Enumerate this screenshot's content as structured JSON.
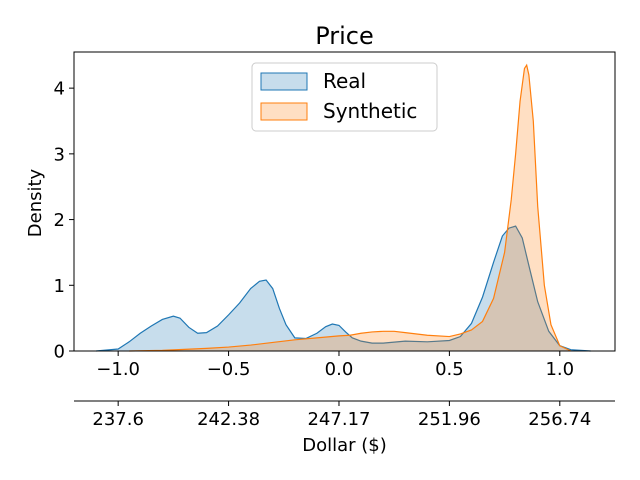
{
  "chart_data": {
    "type": "area",
    "title": "Price",
    "ylabel": "Density",
    "xlim": [
      -1.2,
      1.25
    ],
    "ylim": [
      0,
      4.55
    ],
    "x_ticks": [
      -1.0,
      -0.5,
      0.0,
      0.5,
      1.0
    ],
    "x_tick_labels": [
      "−1.0",
      "−0.5",
      "0.0",
      "0.5",
      "1.0"
    ],
    "y_ticks": [
      0,
      1,
      2,
      3,
      4
    ],
    "y_tick_labels": [
      "0",
      "1",
      "2",
      "3",
      "4"
    ],
    "secondary_axis": {
      "xlabel": "Dollar ($)",
      "tick_labels": [
        "237.6",
        "242.38",
        "247.17",
        "251.96",
        "256.74"
      ]
    },
    "legend": {
      "position": "top-center"
    },
    "series": [
      {
        "name": "Real",
        "color": "#1f77b4",
        "fill": "#1f77b4",
        "fill_opacity": 0.25,
        "x": [
          -1.1,
          -1.0,
          -0.95,
          -0.9,
          -0.85,
          -0.8,
          -0.75,
          -0.72,
          -0.68,
          -0.64,
          -0.6,
          -0.55,
          -0.5,
          -0.45,
          -0.4,
          -0.36,
          -0.33,
          -0.3,
          -0.27,
          -0.24,
          -0.2,
          -0.15,
          -0.1,
          -0.06,
          -0.03,
          0.0,
          0.03,
          0.06,
          0.1,
          0.15,
          0.2,
          0.3,
          0.4,
          0.5,
          0.55,
          0.6,
          0.65,
          0.7,
          0.74,
          0.77,
          0.8,
          0.83,
          0.86,
          0.9,
          0.95,
          1.0,
          1.05,
          1.14
        ],
        "y": [
          0.0,
          0.03,
          0.14,
          0.27,
          0.38,
          0.48,
          0.53,
          0.5,
          0.36,
          0.27,
          0.28,
          0.38,
          0.55,
          0.73,
          0.95,
          1.06,
          1.08,
          0.95,
          0.65,
          0.4,
          0.2,
          0.19,
          0.27,
          0.37,
          0.41,
          0.39,
          0.29,
          0.2,
          0.15,
          0.12,
          0.12,
          0.15,
          0.14,
          0.16,
          0.22,
          0.42,
          0.82,
          1.35,
          1.75,
          1.87,
          1.9,
          1.72,
          1.3,
          0.75,
          0.3,
          0.08,
          0.02,
          0.0
        ]
      },
      {
        "name": "Synthetic",
        "color": "#ff7f0e",
        "fill": "#ff7f0e",
        "fill_opacity": 0.25,
        "x": [
          -0.95,
          -0.8,
          -0.6,
          -0.5,
          -0.4,
          -0.3,
          -0.2,
          -0.1,
          0.0,
          0.05,
          0.1,
          0.15,
          0.2,
          0.25,
          0.3,
          0.4,
          0.5,
          0.55,
          0.6,
          0.65,
          0.7,
          0.75,
          0.78,
          0.8,
          0.82,
          0.84,
          0.85,
          0.86,
          0.88,
          0.9,
          0.93,
          0.96,
          1.0,
          1.05
        ],
        "y": [
          0.0,
          0.01,
          0.04,
          0.06,
          0.09,
          0.13,
          0.17,
          0.2,
          0.23,
          0.24,
          0.27,
          0.29,
          0.3,
          0.3,
          0.28,
          0.24,
          0.22,
          0.26,
          0.32,
          0.45,
          0.8,
          1.5,
          2.3,
          3.0,
          3.8,
          4.3,
          4.35,
          4.2,
          3.5,
          2.2,
          1.0,
          0.4,
          0.08,
          0.0
        ]
      }
    ]
  }
}
